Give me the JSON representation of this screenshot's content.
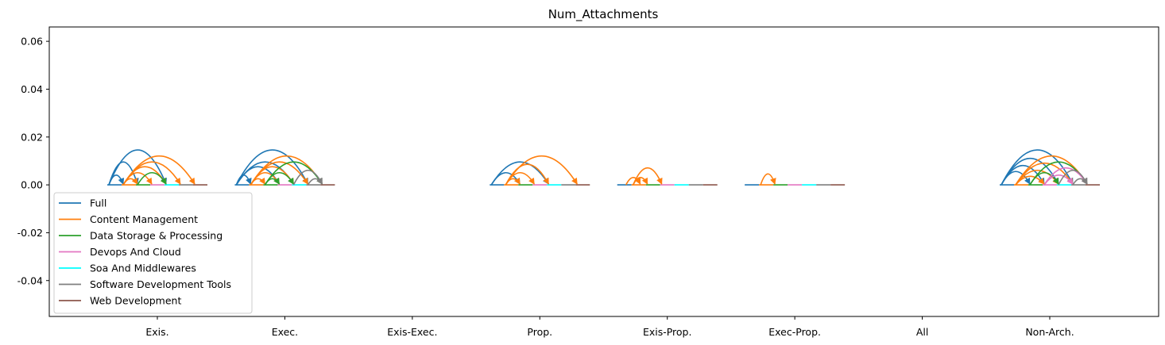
{
  "chart_data": {
    "type": "line",
    "title": "Num_Attachments",
    "xlabel": "",
    "ylabel": "",
    "categories": [
      "Exis.",
      "Exec.",
      "Exis-Exec.",
      "Prop.",
      "Exis-Prop.",
      "Exec-Prop.",
      "All",
      "Non-Arch."
    ],
    "ylim": [
      -0.055,
      0.066
    ],
    "yticks": [
      "0.06",
      "0.04",
      "0.02",
      "0.00",
      "-0.02",
      "-0.04"
    ],
    "ytick_values": [
      0.06,
      0.04,
      0.02,
      0.0,
      -0.02,
      -0.04
    ],
    "grid": false,
    "legend_position": "lower-left",
    "series": [
      {
        "name": "Full",
        "color": "#1f77b4"
      },
      {
        "name": "Content Management",
        "color": "#ff7f0e"
      },
      {
        "name": "Data Storage & Processing",
        "color": "#2ca02c"
      },
      {
        "name": "Devops And Cloud",
        "color": "#e377c2"
      },
      {
        "name": "Soa And Middlewares",
        "color": "#00ffff"
      },
      {
        "name": "Software Development Tools",
        "color": "#7f7f7f"
      },
      {
        "name": "Web Development",
        "color": "#8c564b"
      }
    ],
    "arcs": [
      {
        "category": "Exis.",
        "items": [
          {
            "series": 0,
            "from": 0,
            "to": 4,
            "height": 0.0145
          },
          {
            "series": 0,
            "from": 0,
            "to": 2,
            "height": 0.0095
          },
          {
            "series": 0,
            "from": 0,
            "to": 1,
            "height": 0.004
          },
          {
            "series": 1,
            "from": 1,
            "to": 6,
            "height": 0.012
          },
          {
            "series": 1,
            "from": 1,
            "to": 5,
            "height": 0.0095
          },
          {
            "series": 1,
            "from": 1,
            "to": 4,
            "height": 0.0075
          },
          {
            "series": 1,
            "from": 1,
            "to": 3,
            "height": 0.005
          },
          {
            "series": 1,
            "from": 1,
            "to": 2,
            "height": 0.0025
          },
          {
            "series": 2,
            "from": 2,
            "to": 4,
            "height": 0.005
          }
        ]
      },
      {
        "category": "Exec.",
        "items": [
          {
            "series": 0,
            "from": 0,
            "to": 5,
            "height": 0.0145
          },
          {
            "series": 0,
            "from": 0,
            "to": 4,
            "height": 0.0095
          },
          {
            "series": 0,
            "from": 0,
            "to": 3,
            "height": 0.0075
          },
          {
            "series": 0,
            "from": 0,
            "to": 1,
            "height": 0.004
          },
          {
            "series": 1,
            "from": 1,
            "to": 6,
            "height": 0.012
          },
          {
            "series": 1,
            "from": 1,
            "to": 5,
            "height": 0.0095
          },
          {
            "series": 1,
            "from": 1,
            "to": 4,
            "height": 0.0075
          },
          {
            "series": 1,
            "from": 1,
            "to": 3,
            "height": 0.005
          },
          {
            "series": 1,
            "from": 1,
            "to": 2,
            "height": 0.0025
          },
          {
            "series": 2,
            "from": 2,
            "to": 6,
            "height": 0.0095
          },
          {
            "series": 2,
            "from": 2,
            "to": 4,
            "height": 0.005
          },
          {
            "series": 2,
            "from": 2,
            "to": 3,
            "height": 0.0025
          },
          {
            "series": 5,
            "from": 4,
            "to": 6,
            "height": 0.006
          },
          {
            "series": 5,
            "from": 5,
            "to": 6,
            "height": 0.0025
          }
        ]
      },
      {
        "category": "Prop.",
        "items": [
          {
            "series": 0,
            "from": 0,
            "to": 4,
            "height": 0.0095
          },
          {
            "series": 0,
            "from": 0,
            "to": 2,
            "height": 0.005
          },
          {
            "series": 1,
            "from": 1,
            "to": 6,
            "height": 0.012
          },
          {
            "series": 1,
            "from": 1,
            "to": 4,
            "height": 0.0085
          },
          {
            "series": 1,
            "from": 1,
            "to": 3,
            "height": 0.005
          },
          {
            "series": 1,
            "from": 1,
            "to": 2,
            "height": 0.0025
          }
        ]
      },
      {
        "category": "Exis-Prop.",
        "items": [
          {
            "series": 1,
            "from": 0.5,
            "to": 1.5,
            "height": 0.003
          },
          {
            "series": 1,
            "from": 1,
            "to": 3,
            "height": 0.007
          },
          {
            "series": 1,
            "from": 1,
            "to": 2,
            "height": 0.003
          }
        ]
      },
      {
        "category": "Exec-Prop.",
        "items": [
          {
            "series": 1,
            "from": 1,
            "to": 2,
            "height": 0.0045
          }
        ]
      },
      {
        "category": "Non-Arch.",
        "items": [
          {
            "series": 0,
            "from": 0,
            "to": 5,
            "height": 0.0145
          },
          {
            "series": 0,
            "from": 0,
            "to": 4,
            "height": 0.011
          },
          {
            "series": 0,
            "from": 0,
            "to": 3,
            "height": 0.008
          },
          {
            "series": 0,
            "from": 0,
            "to": 2,
            "height": 0.0055
          },
          {
            "series": 1,
            "from": 1,
            "to": 6,
            "height": 0.012
          },
          {
            "series": 1,
            "from": 1,
            "to": 5,
            "height": 0.009
          },
          {
            "series": 1,
            "from": 1,
            "to": 4,
            "height": 0.006
          },
          {
            "series": 1,
            "from": 1,
            "to": 3,
            "height": 0.0035
          },
          {
            "series": 2,
            "from": 2,
            "to": 6,
            "height": 0.0095
          },
          {
            "series": 2,
            "from": 2,
            "to": 4,
            "height": 0.005
          },
          {
            "series": 3,
            "from": 3,
            "to": 6,
            "height": 0.007
          },
          {
            "series": 3,
            "from": 3,
            "to": 5,
            "height": 0.004
          },
          {
            "series": 5,
            "from": 4,
            "to": 6,
            "height": 0.006
          },
          {
            "series": 5,
            "from": 5,
            "to": 6,
            "height": 0.0025
          }
        ]
      }
    ],
    "baselines": [
      "Exis.",
      "Exec.",
      "Prop.",
      "Exis-Prop.",
      "Exec-Prop.",
      "Non-Arch."
    ]
  }
}
